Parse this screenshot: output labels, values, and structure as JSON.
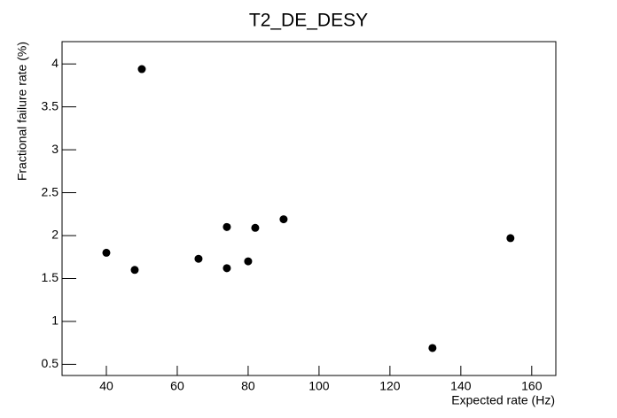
{
  "chart_data": {
    "type": "scatter",
    "title": "T2_DE_DESY",
    "x_label": "Expected rate (Hz)",
    "y_label": "Fractional failure rate (%)",
    "x": [
      40,
      48,
      50,
      66,
      74,
      74,
      80,
      82,
      90,
      132,
      154
    ],
    "values": [
      1.8,
      1.6,
      3.94,
      1.73,
      2.1,
      1.62,
      1.7,
      2.09,
      2.19,
      0.69,
      1.97
    ],
    "color": "#000000",
    "xlim": [
      27.5,
      166.8
    ],
    "ylim": [
      0.37,
      4.26
    ],
    "xticks": [
      40,
      60,
      80,
      100,
      120,
      140,
      160
    ],
    "yticks": [
      0.5,
      1,
      1.5,
      2,
      2.5,
      3,
      3.5,
      4
    ]
  }
}
